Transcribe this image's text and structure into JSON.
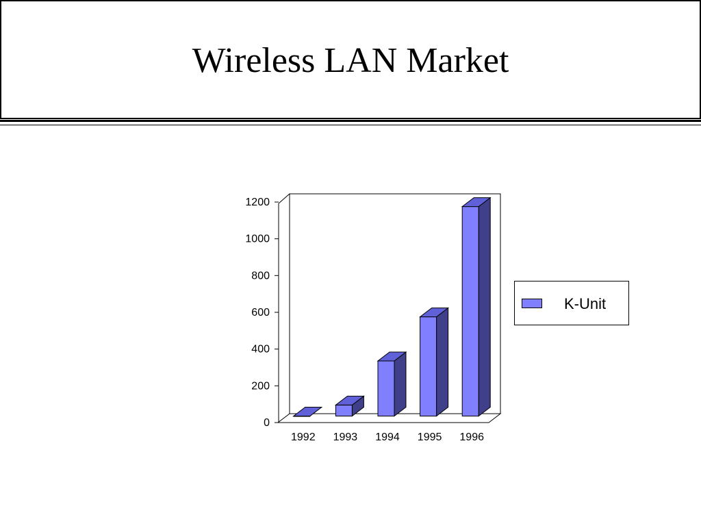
{
  "slide": {
    "title": "Wireless LAN Market"
  },
  "colors": {
    "bar_front": "#8080ff",
    "bar_top": "#6060d8",
    "bar_side": "#40408a",
    "outline": "#000000"
  },
  "chart_data": {
    "type": "bar",
    "style": "3d-column",
    "categories": [
      "1992",
      "1993",
      "1994",
      "1995",
      "1996"
    ],
    "series": [
      {
        "name": "K-Unit",
        "values": [
          0,
          60,
          300,
          540,
          1140
        ]
      }
    ],
    "y_ticks": [
      "0",
      "200",
      "400",
      "600",
      "800",
      "1000",
      "1200"
    ],
    "ylim": [
      0,
      1200
    ],
    "grid": false,
    "legend_position": "right"
  }
}
